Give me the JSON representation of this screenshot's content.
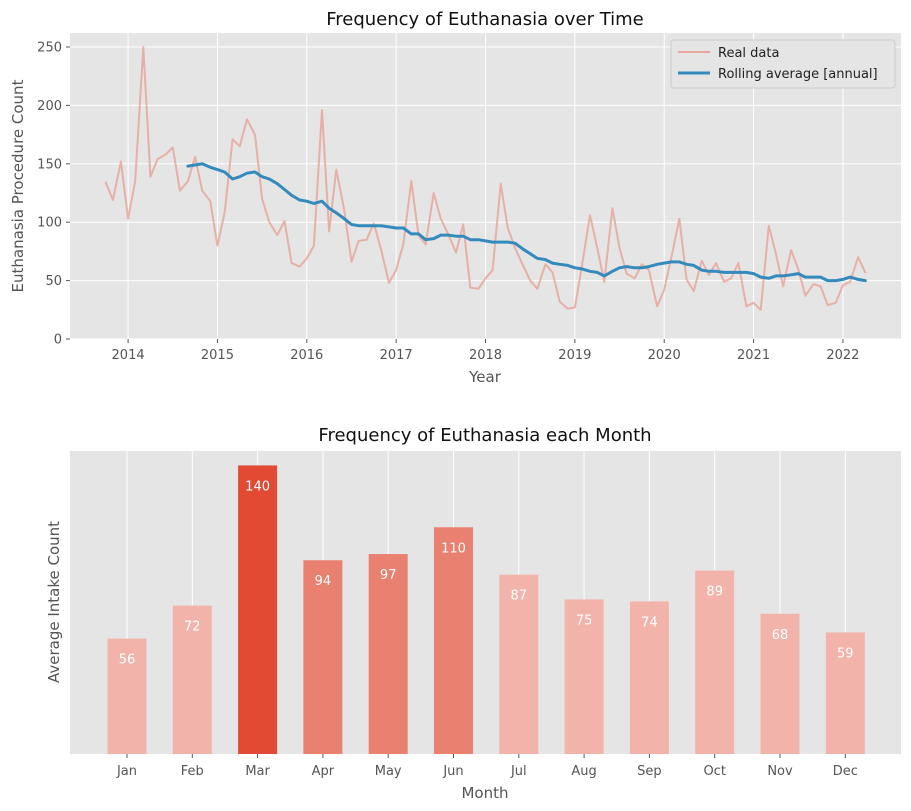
{
  "chart_data": [
    {
      "type": "line",
      "title": "Frequency of Euthanasia over Time",
      "xlabel": "Year",
      "ylabel": "Euthanasia Procedure Count",
      "xlim": [
        2013.35,
        2022.65
      ],
      "ylim": [
        0,
        262
      ],
      "xticks": [
        2014,
        2015,
        2016,
        2017,
        2018,
        2019,
        2020,
        2021,
        2022
      ],
      "yticks": [
        0,
        50,
        100,
        150,
        200,
        250
      ],
      "grid": true,
      "legend": "top-right",
      "series": [
        {
          "name": "Real data",
          "color": "#E8A79B",
          "x": [
            2013.75,
            2013.83,
            2013.92,
            2014.0,
            2014.08,
            2014.17,
            2014.25,
            2014.33,
            2014.42,
            2014.5,
            2014.58,
            2014.67,
            2014.75,
            2014.83,
            2014.92,
            2015.0,
            2015.08,
            2015.17,
            2015.25,
            2015.33,
            2015.42,
            2015.5,
            2015.58,
            2015.67,
            2015.75,
            2015.83,
            2015.92,
            2016.0,
            2016.08,
            2016.17,
            2016.25,
            2016.33,
            2016.42,
            2016.5,
            2016.58,
            2016.67,
            2016.75,
            2016.83,
            2016.92,
            2017.0,
            2017.08,
            2017.17,
            2017.25,
            2017.33,
            2017.42,
            2017.5,
            2017.58,
            2017.67,
            2017.75,
            2017.83,
            2017.92,
            2018.0,
            2018.08,
            2018.17,
            2018.25,
            2018.33,
            2018.42,
            2018.5,
            2018.58,
            2018.67,
            2018.75,
            2018.83,
            2018.92,
            2019.0,
            2019.08,
            2019.17,
            2019.25,
            2019.33,
            2019.42,
            2019.5,
            2019.58,
            2019.67,
            2019.75,
            2019.83,
            2019.92,
            2020.0,
            2020.08,
            2020.17,
            2020.25,
            2020.33,
            2020.42,
            2020.5,
            2020.58,
            2020.67,
            2020.75,
            2020.83,
            2020.92,
            2021.0,
            2021.08,
            2021.17,
            2021.25,
            2021.33,
            2021.42,
            2021.5,
            2021.58,
            2021.67,
            2021.75,
            2021.83,
            2021.92,
            2022.0,
            2022.08,
            2022.17,
            2022.25
          ],
          "y": [
            134,
            119,
            152,
            103,
            135,
            250,
            139,
            154,
            158,
            164,
            127,
            135,
            156,
            127,
            118,
            80,
            108,
            171,
            165,
            188,
            175,
            120,
            100,
            89,
            101,
            65,
            62,
            69,
            80,
            196,
            92,
            145,
            110,
            66,
            84,
            85,
            99,
            77,
            48,
            59,
            81,
            135,
            89,
            81,
            125,
            103,
            90,
            74,
            98,
            44,
            43,
            52,
            59,
            133,
            95,
            78,
            63,
            50,
            43,
            64,
            57,
            32,
            26,
            27,
            63,
            106,
            78,
            49,
            112,
            78,
            56,
            52,
            64,
            59,
            28,
            42,
            70,
            103,
            51,
            41,
            67,
            55,
            65,
            49,
            52,
            65,
            28,
            31,
            25,
            97,
            73,
            45,
            76,
            60,
            37,
            47,
            45,
            29,
            31,
            46,
            49,
            70,
            57
          ]
        },
        {
          "name": "Rolling average [annual]",
          "color": "#348ABD",
          "x": [
            2014.67,
            2014.75,
            2014.83,
            2014.92,
            2015.0,
            2015.08,
            2015.17,
            2015.25,
            2015.33,
            2015.42,
            2015.5,
            2015.58,
            2015.67,
            2015.75,
            2015.83,
            2015.92,
            2016.0,
            2016.08,
            2016.17,
            2016.25,
            2016.33,
            2016.42,
            2016.5,
            2016.58,
            2016.67,
            2016.75,
            2016.83,
            2016.92,
            2017.0,
            2017.08,
            2017.17,
            2017.25,
            2017.33,
            2017.42,
            2017.5,
            2017.58,
            2017.67,
            2017.75,
            2017.83,
            2017.92,
            2018.0,
            2018.08,
            2018.17,
            2018.25,
            2018.33,
            2018.42,
            2018.5,
            2018.58,
            2018.67,
            2018.75,
            2018.83,
            2018.92,
            2019.0,
            2019.08,
            2019.17,
            2019.25,
            2019.33,
            2019.42,
            2019.5,
            2019.58,
            2019.67,
            2019.75,
            2019.83,
            2019.92,
            2020.0,
            2020.08,
            2020.17,
            2020.25,
            2020.33,
            2020.42,
            2020.5,
            2020.58,
            2020.67,
            2020.75,
            2020.83,
            2020.92,
            2021.0,
            2021.08,
            2021.17,
            2021.25,
            2021.33,
            2021.42,
            2021.5,
            2021.58,
            2021.67,
            2021.75,
            2021.83,
            2021.92,
            2022.0,
            2022.08,
            2022.17,
            2022.25
          ],
          "y": [
            148,
            149,
            150,
            147,
            145,
            143,
            137,
            139,
            142,
            143,
            139,
            137,
            133,
            128,
            123,
            119,
            118,
            116,
            118,
            112,
            108,
            103,
            98,
            97,
            97,
            97,
            97,
            96,
            95,
            95,
            90,
            90,
            85,
            86,
            89,
            89,
            88,
            88,
            85,
            85,
            84,
            83,
            83,
            83,
            82,
            77,
            73,
            69,
            68,
            65,
            64,
            63,
            61,
            60,
            58,
            57,
            54,
            58,
            61,
            62,
            61,
            61,
            62,
            64,
            65,
            66,
            66,
            64,
            63,
            59,
            58,
            58,
            57,
            57,
            57,
            57,
            56,
            53,
            52,
            54,
            54,
            55,
            56,
            53,
            53,
            53,
            50,
            50,
            51,
            53,
            51,
            50
          ]
        }
      ]
    },
    {
      "type": "bar",
      "title": "Frequency of Euthanasia each Month",
      "xlabel": "Month",
      "ylabel": "Average Intake Count",
      "ylim": [
        0,
        147
      ],
      "categories": [
        "Jan",
        "Feb",
        "Mar",
        "Apr",
        "May",
        "Jun",
        "Jul",
        "Aug",
        "Sep",
        "Oct",
        "Nov",
        "Dec"
      ],
      "values": [
        56,
        72,
        140,
        94,
        97,
        110,
        87,
        75,
        74,
        89,
        68,
        59
      ],
      "data_labels": [
        "56",
        "72",
        "140",
        "94",
        "97",
        "110",
        "87",
        "75",
        "74",
        "89",
        "68",
        "59"
      ],
      "bar_colors": [
        "#F2B4AA",
        "#F2B4AA",
        "#E24A33",
        "#E98070",
        "#E98070",
        "#E98070",
        "#F2B4AA",
        "#F2B4AA",
        "#F2B4AA",
        "#F2B4AA",
        "#F2B4AA",
        "#F2B4AA"
      ],
      "grid": true
    }
  ]
}
